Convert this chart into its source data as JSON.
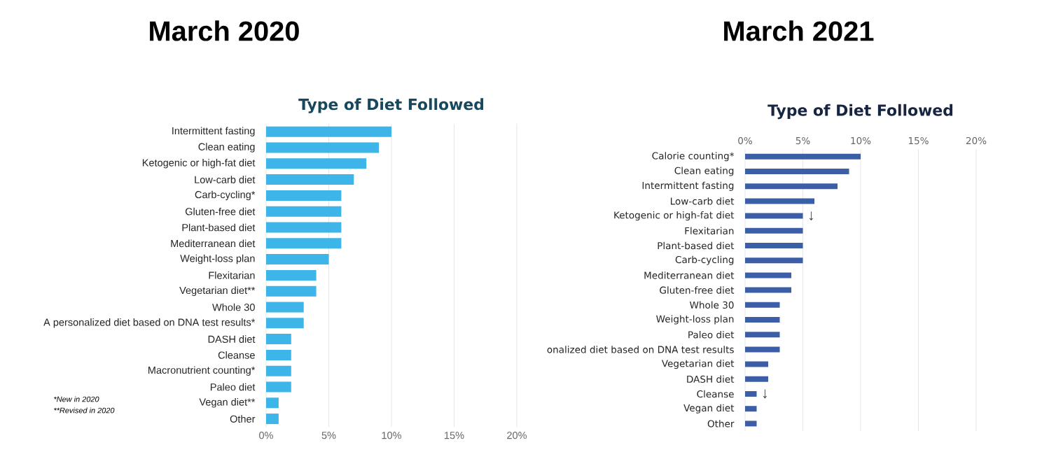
{
  "chart_data": [
    {
      "type": "bar",
      "orientation": "horizontal",
      "title": "March 2020",
      "subtitle": "Type of Diet Followed",
      "categories": [
        "Intermittent fasting",
        "Clean eating",
        "Ketogenic or high-fat diet",
        "Low-carb diet",
        "Carb-cycling*",
        "Gluten-free diet",
        "Plant-based diet",
        "Mediterranean diet",
        "Weight-loss plan",
        "Flexitarian",
        "Vegetarian diet**",
        "Whole 30",
        "A personalized diet based on DNA test results*",
        "DASH diet",
        "Cleanse",
        "Macronutrient counting*",
        "Paleo diet",
        "Vegan diet**",
        "Other"
      ],
      "values": [
        10,
        9,
        8,
        7,
        6,
        6,
        6,
        6,
        5,
        4,
        4,
        3,
        3,
        2,
        2,
        2,
        2,
        1,
        1
      ],
      "color": "#3db5e8",
      "xlim": [
        0,
        20
      ],
      "xticks": [
        {
          "value": 0,
          "label": "0%"
        },
        {
          "value": 5,
          "label": "5%"
        },
        {
          "value": 10,
          "label": "10%"
        },
        {
          "value": 15,
          "label": "15%"
        },
        {
          "value": 20,
          "label": "20%"
        }
      ],
      "grid": "x",
      "annotations": [
        "*New in 2020",
        "**Revised in 2020"
      ]
    },
    {
      "type": "bar",
      "orientation": "horizontal",
      "title": "March 2021",
      "subtitle": "Type of Diet Followed",
      "categories": [
        "Calorie counting*",
        "Clean eating",
        "Intermittent fasting",
        "Low-carb diet",
        "Ketogenic or high-fat diet",
        "Flexitarian",
        "Plant-based diet",
        "Carb-cycling",
        "Mediterranean diet",
        "Gluten-free diet",
        "Whole 30",
        "Weight-loss plan",
        "Paleo diet",
        "onalized diet based on DNA test results",
        "Vegetarian diet",
        "DASH diet",
        "Cleanse",
        "Vegan diet",
        "Other"
      ],
      "values": [
        10,
        9,
        8,
        6,
        5,
        5,
        5,
        5,
        4,
        4,
        3,
        3,
        3,
        3,
        2,
        2,
        1,
        1,
        1
      ],
      "color": "#3b5ea6",
      "xlim": [
        0,
        20
      ],
      "xticks": [
        {
          "value": 0,
          "label": "0%"
        },
        {
          "value": 5,
          "label": "5%"
        },
        {
          "value": 10,
          "label": "10%"
        },
        {
          "value": 15,
          "label": "15%"
        },
        {
          "value": 20,
          "label": "20%"
        }
      ],
      "grid": "x",
      "annotations": [
        {
          "text": "↓",
          "x": 5,
          "y": "Ketogenic or high-fat diet"
        },
        {
          "text": "↓",
          "x": 1,
          "y": "Cleanse"
        }
      ]
    }
  ]
}
